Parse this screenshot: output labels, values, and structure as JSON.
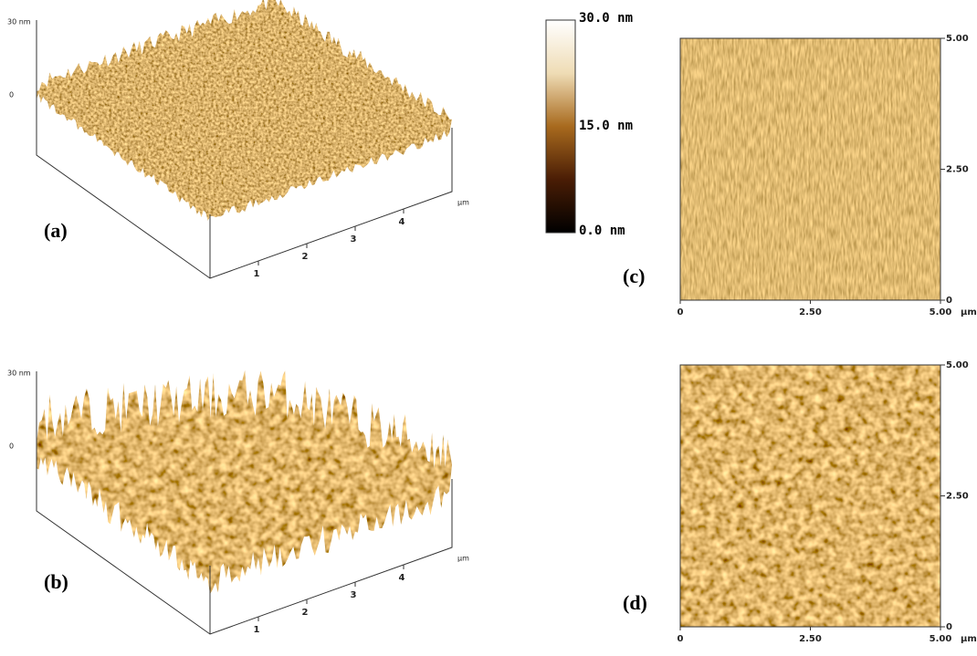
{
  "panels": [
    {
      "label": "(a)",
      "z_ticks": [
        "30 nm",
        "0"
      ],
      "x_ticks": [
        "1",
        "2",
        "3",
        "4"
      ],
      "x_unit": "µm"
    },
    {
      "label": "(b)",
      "z_ticks": [
        "30 nm",
        "0"
      ],
      "x_ticks": [
        "1",
        "2",
        "3",
        "4"
      ],
      "x_unit": "µm"
    }
  ],
  "color_bar": {
    "labels": [
      "30.0 nm",
      "15.0 nm",
      "0.0 nm"
    ]
  },
  "maps": [
    {
      "label": "(c)",
      "y_ticks": [
        "5.00",
        "2.50",
        "0"
      ],
      "x_ticks": [
        "0",
        "2.50",
        "5.00"
      ],
      "x_unit": "µm"
    },
    {
      "label": "(d)",
      "y_ticks": [
        "5.00",
        "2.50",
        "0"
      ],
      "x_ticks": [
        "0",
        "2.50",
        "5.00"
      ],
      "x_unit": "µm"
    }
  ]
}
